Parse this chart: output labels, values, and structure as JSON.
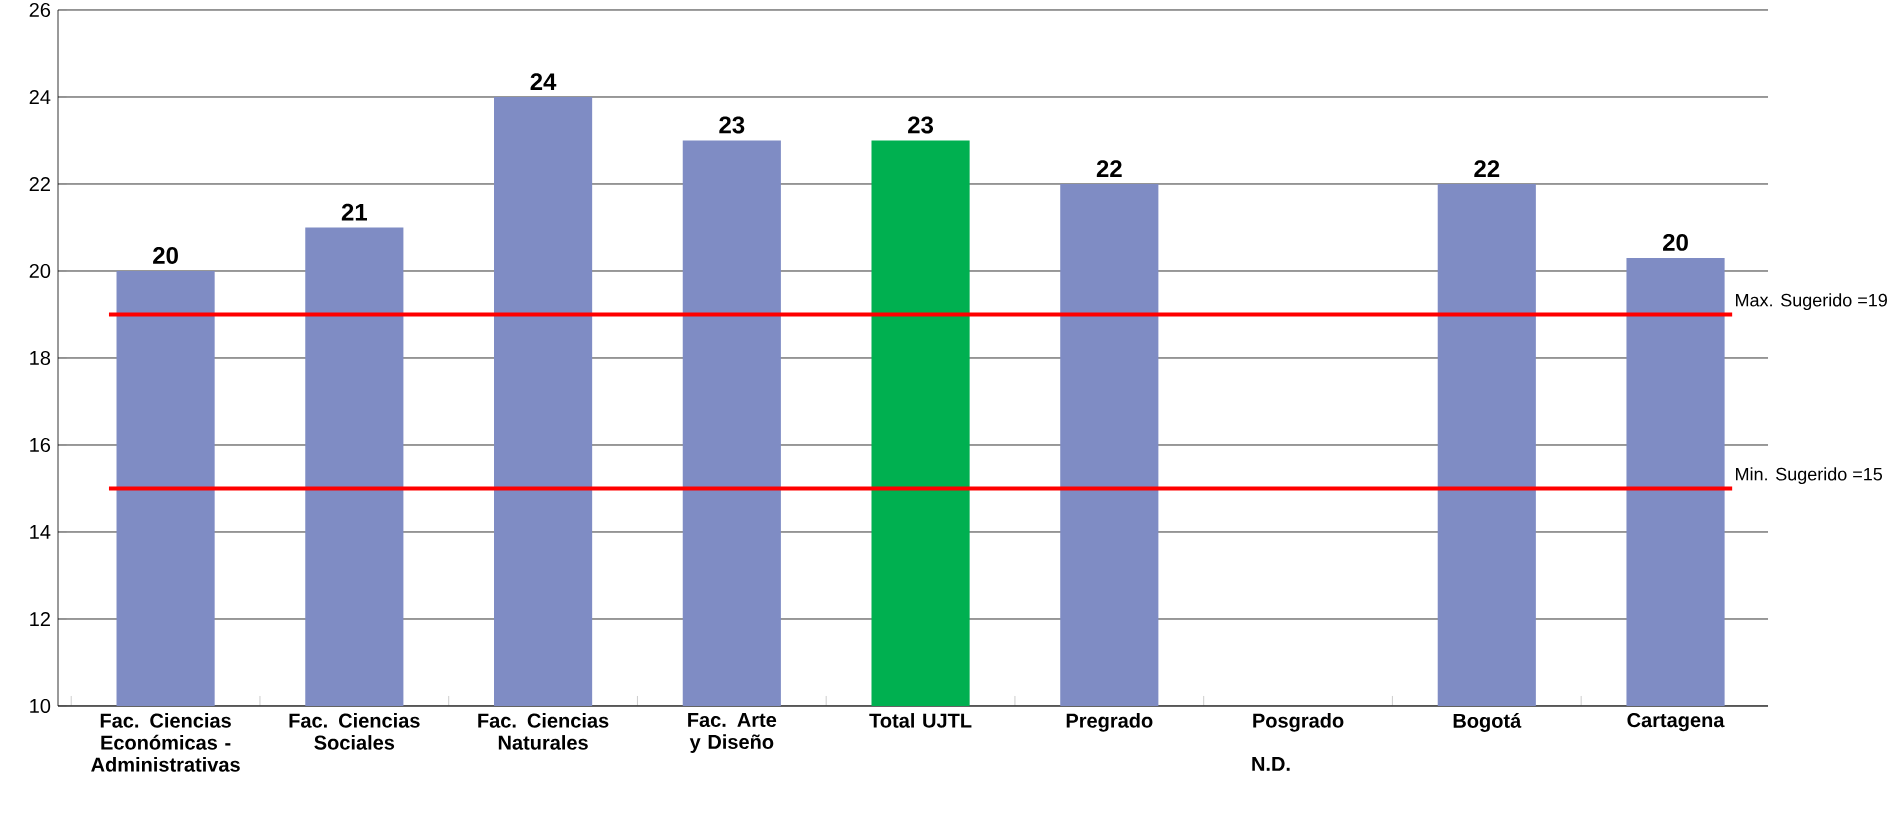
{
  "chart_data": {
    "type": "bar",
    "categories": [
      "Fac. Ciencias Económicas - Administrativas",
      "Fac. Ciencias Sociales",
      "Fac. Ciencias Naturales",
      "Fac. Arte y Diseño",
      "Total UJTL",
      "Pregrado",
      "Posgrado",
      "Bogotá",
      "Cartagena"
    ],
    "values": [
      20,
      21,
      24,
      23,
      23,
      22,
      null,
      22,
      20.3
    ],
    "value_labels": [
      "20",
      "21",
      "24",
      "23",
      "23",
      "22",
      "N.D.",
      "22",
      "20"
    ],
    "colors": [
      "#7f8cc4",
      "#7f8cc4",
      "#7f8cc4",
      "#7f8cc4",
      "#00b050",
      "#7f8cc4",
      "#7f8cc4",
      "#7f8cc4",
      "#7f8cc4"
    ],
    "ylim": [
      10,
      26
    ],
    "yticks": [
      10,
      12,
      14,
      16,
      18,
      20,
      22,
      24,
      26
    ],
    "grid": "y",
    "ref_lines": [
      {
        "axis": "y",
        "value": 19,
        "label": "Max. Sugerido =19",
        "color": "#ff0000"
      },
      {
        "axis": "y",
        "value": 15,
        "label": "Min. Sugerido =15",
        "color": "#ff0000"
      }
    ]
  }
}
